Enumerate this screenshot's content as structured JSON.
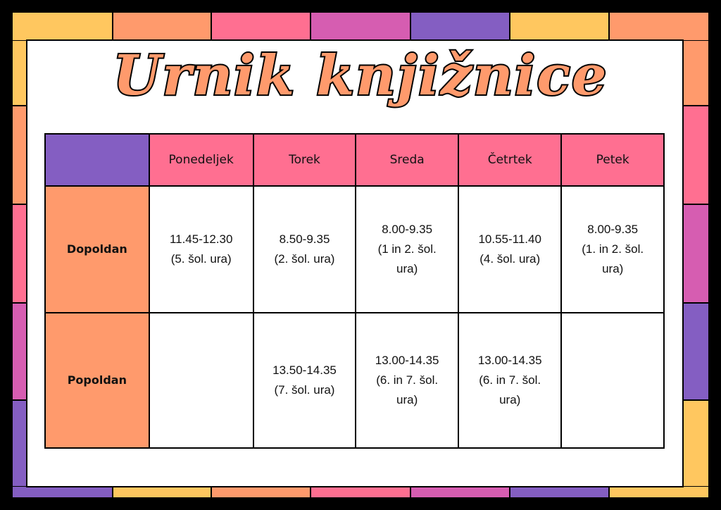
{
  "colors": {
    "yellow": "#FFC75F",
    "orange": "#FF9A6C",
    "pink": "#FF6F91",
    "magenta": "#D65DB1",
    "purple": "#845EC2"
  },
  "border": {
    "top": [
      "yellow",
      "orange",
      "pink",
      "magenta",
      "purple",
      "yellow",
      "orange"
    ],
    "bottom": [
      "purple",
      "yellow",
      "orange",
      "pink",
      "magenta",
      "purple",
      "yellow"
    ],
    "left": [
      "yellow",
      "orange",
      "pink",
      "magenta",
      "purple"
    ],
    "right": [
      "orange",
      "pink",
      "magenta",
      "purple",
      "yellow"
    ]
  },
  "title": "Urnik knjižnice",
  "table": {
    "days": [
      "Ponedeljek",
      "Torek",
      "Sreda",
      "Četrtek",
      "Petek"
    ],
    "rows": [
      {
        "label": "Dopoldan",
        "cells": [
          [
            "11.45-12.30",
            "(5. šol. ura)"
          ],
          [
            "8.50-9.35",
            "(2. šol. ura)"
          ],
          [
            "8.00-9.35",
            "(1 in 2. šol.",
            "ura)"
          ],
          [
            "10.55-11.40",
            "(4. šol. ura)"
          ],
          [
            "8.00-9.35",
            "(1. in 2. šol.",
            "ura)"
          ]
        ]
      },
      {
        "label": "Popoldan",
        "cells": [
          [],
          [
            "13.50-14.35",
            "(7. šol. ura)"
          ],
          [
            "13.00-14.35",
            "(6. in 7. šol.",
            "ura)"
          ],
          [
            "13.00-14.35",
            "(6. in 7. šol.",
            "ura)"
          ],
          []
        ]
      }
    ]
  }
}
